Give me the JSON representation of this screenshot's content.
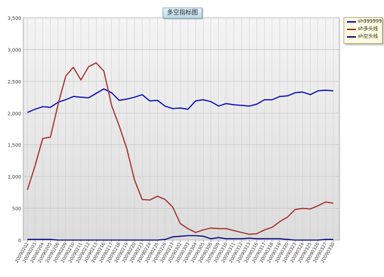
{
  "chart_data": {
    "type": "line",
    "title": "多空指标图",
    "xlabel": "",
    "ylabel": "",
    "ylim": [
      0,
      3500
    ],
    "yticks": [
      0,
      500,
      1000,
      1500,
      2000,
      2500,
      3000,
      3500
    ],
    "ytick_labels": [
      "0",
      "500",
      "1,000",
      "1,500",
      "2,000",
      "2,500",
      "3,000",
      "3,500"
    ],
    "grid": true,
    "legend_position": "top-right",
    "categories": [
      "20090202",
      "20090203",
      "20090204",
      "20090205",
      "20090206",
      "20090209",
      "20090210",
      "20090211",
      "20090212",
      "20090213",
      "20090216",
      "20090217",
      "20090218",
      "20090219",
      "20090220",
      "20090223",
      "20090224",
      "20090225",
      "20090226",
      "20090227",
      "20090302",
      "20090303",
      "20090304",
      "20090305",
      "20090306",
      "20090309",
      "20090310",
      "20090311",
      "20090312",
      "20090313",
      "20090316",
      "20090317",
      "20090318",
      "20090319",
      "20090320",
      "20090323",
      "20090324",
      "20090325",
      "20090326",
      "20090327",
      "20090330"
    ],
    "series": [
      {
        "name": "sh999999",
        "color": "#0000c0",
        "values": [
          2010,
          2060,
          2100,
          2090,
          2170,
          2210,
          2260,
          2250,
          2240,
          2310,
          2380,
          2320,
          2200,
          2220,
          2250,
          2290,
          2190,
          2200,
          2110,
          2070,
          2080,
          2060,
          2190,
          2210,
          2180,
          2110,
          2150,
          2130,
          2120,
          2110,
          2140,
          2210,
          2210,
          2260,
          2270,
          2320,
          2330,
          2290,
          2350,
          2360,
          2350
        ]
      },
      {
        "name": "sh多头线",
        "color": "#a02828",
        "values": [
          790,
          1170,
          1600,
          1620,
          2130,
          2580,
          2720,
          2520,
          2730,
          2790,
          2660,
          2120,
          1800,
          1440,
          950,
          640,
          630,
          690,
          640,
          520,
          260,
          180,
          120,
          160,
          190,
          180,
          180,
          150,
          120,
          90,
          100,
          160,
          200,
          290,
          360,
          480,
          500,
          490,
          540,
          600,
          580
        ]
      },
      {
        "name": "sh空头线",
        "color": "#000080",
        "values": [
          10,
          10,
          10,
          10,
          0,
          0,
          0,
          0,
          0,
          0,
          0,
          0,
          0,
          0,
          0,
          0,
          0,
          0,
          10,
          50,
          60,
          70,
          70,
          60,
          20,
          40,
          20,
          20,
          20,
          30,
          20,
          20,
          20,
          20,
          10,
          0,
          0,
          0,
          0,
          10,
          10
        ]
      }
    ]
  }
}
